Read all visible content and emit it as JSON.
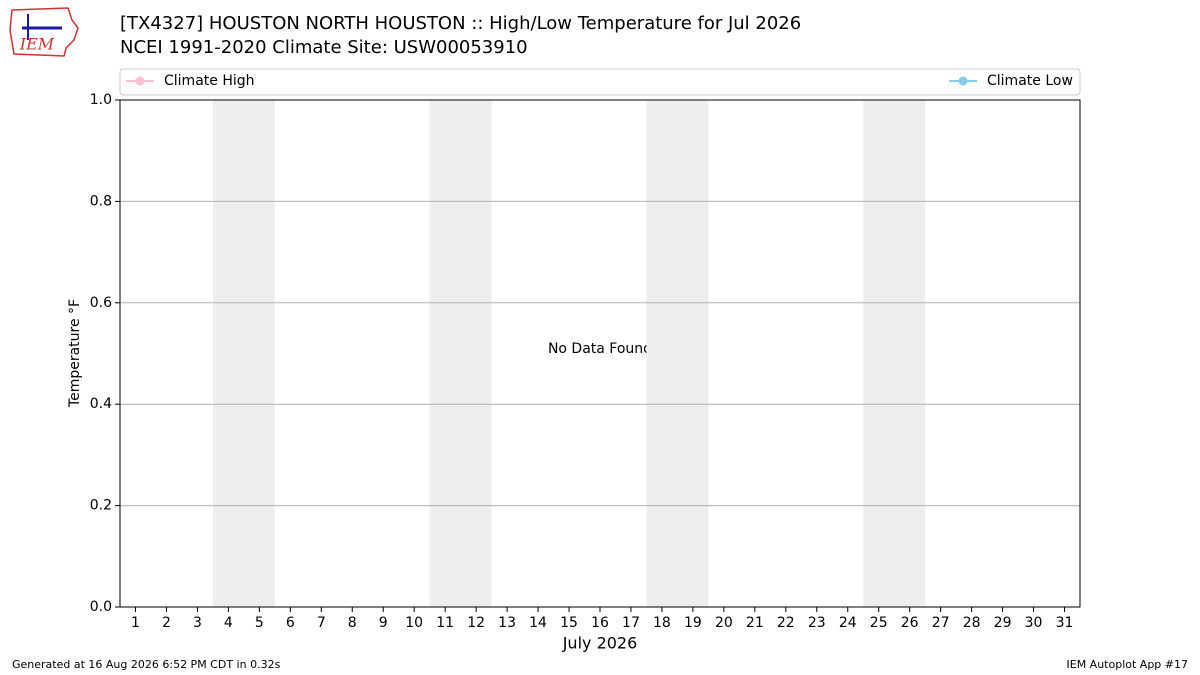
{
  "chart_data": {
    "type": "line",
    "title": "[TX4327] HOUSTON NORTH HOUSTON :: High/Low Temperature for Jul 2026",
    "subtitle": "NCEI 1991-2020 Climate Site: USW00053910",
    "xlabel": "July 2026",
    "ylabel": "Temperature °F",
    "annotation": "No Data Found",
    "x": [
      1,
      2,
      3,
      4,
      5,
      6,
      7,
      8,
      9,
      10,
      11,
      12,
      13,
      14,
      15,
      16,
      17,
      18,
      19,
      20,
      21,
      22,
      23,
      24,
      25,
      26,
      27,
      28,
      29,
      30,
      31
    ],
    "xlim": [
      0.5,
      31.5
    ],
    "xticks": [
      1,
      2,
      3,
      4,
      5,
      6,
      7,
      8,
      9,
      10,
      11,
      12,
      13,
      14,
      15,
      16,
      17,
      18,
      19,
      20,
      21,
      22,
      23,
      24,
      25,
      26,
      27,
      28,
      29,
      30,
      31
    ],
    "weekends": [
      [
        4,
        5
      ],
      [
        11,
        12
      ],
      [
        18,
        19
      ],
      [
        25,
        26
      ]
    ],
    "ylim": [
      0,
      1
    ],
    "yticks": [
      {
        "value": 0,
        "label": "0.0"
      },
      {
        "value": 0.2,
        "label": "0.2"
      },
      {
        "value": 0.4,
        "label": "0.4"
      },
      {
        "value": 0.6,
        "label": "0.6"
      },
      {
        "value": 0.8,
        "label": "0.8"
      },
      {
        "value": 1,
        "label": "1.0"
      }
    ],
    "grid": true,
    "series": [
      {
        "name": "Climate High",
        "color": "#ffc0cb",
        "values": [
          null,
          null,
          null,
          null,
          null,
          null,
          null,
          null,
          null,
          null,
          null,
          null,
          null,
          null,
          null,
          null,
          null,
          null,
          null,
          null,
          null,
          null,
          null,
          null,
          null,
          null,
          null,
          null,
          null,
          null,
          null
        ]
      },
      {
        "name": "Climate Low",
        "color": "#87ceeb",
        "values": [
          null,
          null,
          null,
          null,
          null,
          null,
          null,
          null,
          null,
          null,
          null,
          null,
          null,
          null,
          null,
          null,
          null,
          null,
          null,
          null,
          null,
          null,
          null,
          null,
          null,
          null,
          null,
          null,
          null,
          null,
          null
        ]
      }
    ],
    "logo_text": "IEM",
    "footer_left": "Generated at 16 Aug 2026 6:52 PM CDT in 0.32s",
    "footer_right": "IEM Autoplot App #17"
  }
}
